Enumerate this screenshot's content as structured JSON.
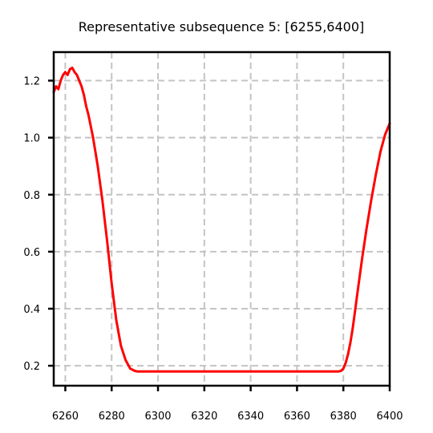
{
  "chart_data": {
    "type": "line",
    "title": "Representative subsequence 5: [6255,6400]",
    "xlabel": "",
    "ylabel": "",
    "xlim": [
      6255,
      6400
    ],
    "ylim": [
      0.13,
      1.3
    ],
    "xticks": [
      6260,
      6280,
      6300,
      6320,
      6340,
      6360,
      6380,
      6400
    ],
    "yticks": [
      0.2,
      0.4,
      0.6,
      0.8,
      1.0,
      1.2
    ],
    "ytick_labels": [
      "0.2",
      "0.4",
      "0.6",
      "0.8",
      "1.0",
      "1.2"
    ],
    "grid": true,
    "legend": "none",
    "series": [
      {
        "color": "#ff0000",
        "x": [
          6255,
          6256,
          6257,
          6258,
          6259,
          6260,
          6261,
          6262,
          6263,
          6264,
          6265,
          6266,
          6267,
          6268,
          6269,
          6270,
          6272,
          6274,
          6276,
          6278,
          6280,
          6282,
          6284,
          6286,
          6288,
          6290,
          6291,
          6292,
          6300,
          6320,
          6340,
          6360,
          6378,
          6379,
          6380,
          6381,
          6382,
          6383,
          6384,
          6385,
          6386,
          6388,
          6390,
          6392,
          6394,
          6396,
          6398,
          6399,
          6400
        ],
        "y": [
          1.16,
          1.18,
          1.17,
          1.2,
          1.22,
          1.23,
          1.22,
          1.24,
          1.245,
          1.23,
          1.22,
          1.2,
          1.18,
          1.15,
          1.11,
          1.08,
          1.0,
          0.9,
          0.78,
          0.64,
          0.49,
          0.36,
          0.27,
          0.22,
          0.19,
          0.182,
          0.18,
          0.18,
          0.18,
          0.18,
          0.18,
          0.18,
          0.18,
          0.182,
          0.19,
          0.21,
          0.24,
          0.28,
          0.33,
          0.39,
          0.45,
          0.57,
          0.68,
          0.78,
          0.87,
          0.95,
          1.01,
          1.03,
          1.05
        ]
      }
    ]
  }
}
